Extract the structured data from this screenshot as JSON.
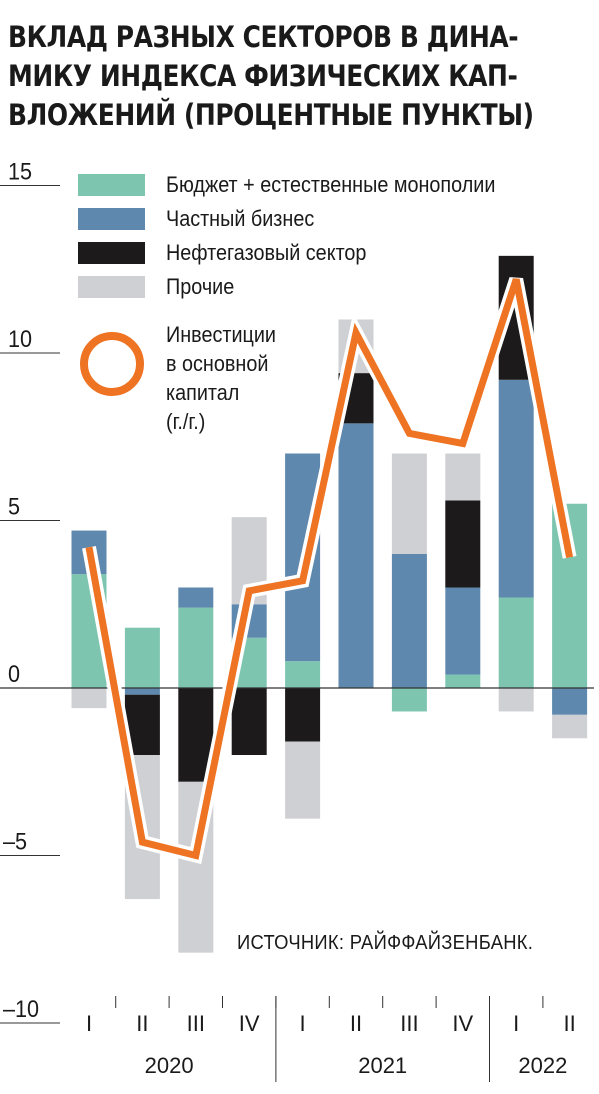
{
  "title_lines": [
    "ВКЛАД РАЗНЫХ СЕКТОРОВ В ДИНА-",
    "МИКУ ИНДЕКСА ФИЗИЧЕСКИХ КАП-",
    "ВЛОЖЕНИЙ (ПРОЦЕНТНЫЕ ПУНКТЫ)"
  ],
  "source": "ИСТОЧНИК: РАЙФФАЙЗЕНБАНК.",
  "colors": {
    "budget": "#7ec5b0",
    "private": "#5e88ad",
    "oilgas": "#1c1a1b",
    "other": "#cfd0d4",
    "investment_line": "#ee7322"
  },
  "chart_data": {
    "type": "bar",
    "stacked": true,
    "title": "ВКЛАД РАЗНЫХ СЕКТОРОВ В ДИНАМИКУ ИНДЕКСА ФИЗИЧЕСКИХ КАПВЛОЖЕНИЙ (ПРОЦЕНТНЫЕ ПУНКТЫ)",
    "categories": [
      "I",
      "II",
      "III",
      "IV",
      "I",
      "II",
      "III",
      "IV",
      "I",
      "II"
    ],
    "years": [
      {
        "label": "2020",
        "count": 4
      },
      {
        "label": "2021",
        "count": 4
      },
      {
        "label": "2022",
        "count": 2
      }
    ],
    "ylim": [
      -10,
      15
    ],
    "yticks": [
      "15",
      "10",
      "5",
      "0",
      "–5",
      "–10"
    ],
    "ytick_values": [
      15,
      10,
      5,
      0,
      -5,
      -10
    ],
    "series": [
      {
        "name": "Бюджет + естественные монополии",
        "key": "budget",
        "values": [
          3.4,
          1.8,
          2.4,
          1.5,
          0.8,
          0.0,
          -0.7,
          0.4,
          2.7,
          5.5
        ]
      },
      {
        "name": "Частный бизнес",
        "key": "private",
        "values": [
          1.3,
          -0.2,
          0.6,
          1.0,
          6.2,
          7.9,
          4.0,
          2.6,
          6.5,
          -0.8
        ]
      },
      {
        "name": "Нефтегазовый сектор",
        "key": "oilgas",
        "values": [
          0.0,
          -1.8,
          -2.8,
          -2.0,
          -1.6,
          1.5,
          0.0,
          2.6,
          3.7,
          0.0
        ]
      },
      {
        "name": "Прочие",
        "key": "other",
        "values": [
          -0.6,
          -4.3,
          -5.1,
          2.6,
          -2.3,
          1.6,
          3.0,
          1.4,
          -0.7,
          -0.7
        ]
      }
    ],
    "line": {
      "name_lines": [
        "Инвестиции",
        "в основной",
        "капитал",
        "(г./г.)"
      ],
      "values": [
        4.2,
        -4.6,
        -5.0,
        2.9,
        3.2,
        10.6,
        7.6,
        7.3,
        12.2,
        3.9
      ]
    },
    "grid": false,
    "legend_position": "top"
  }
}
